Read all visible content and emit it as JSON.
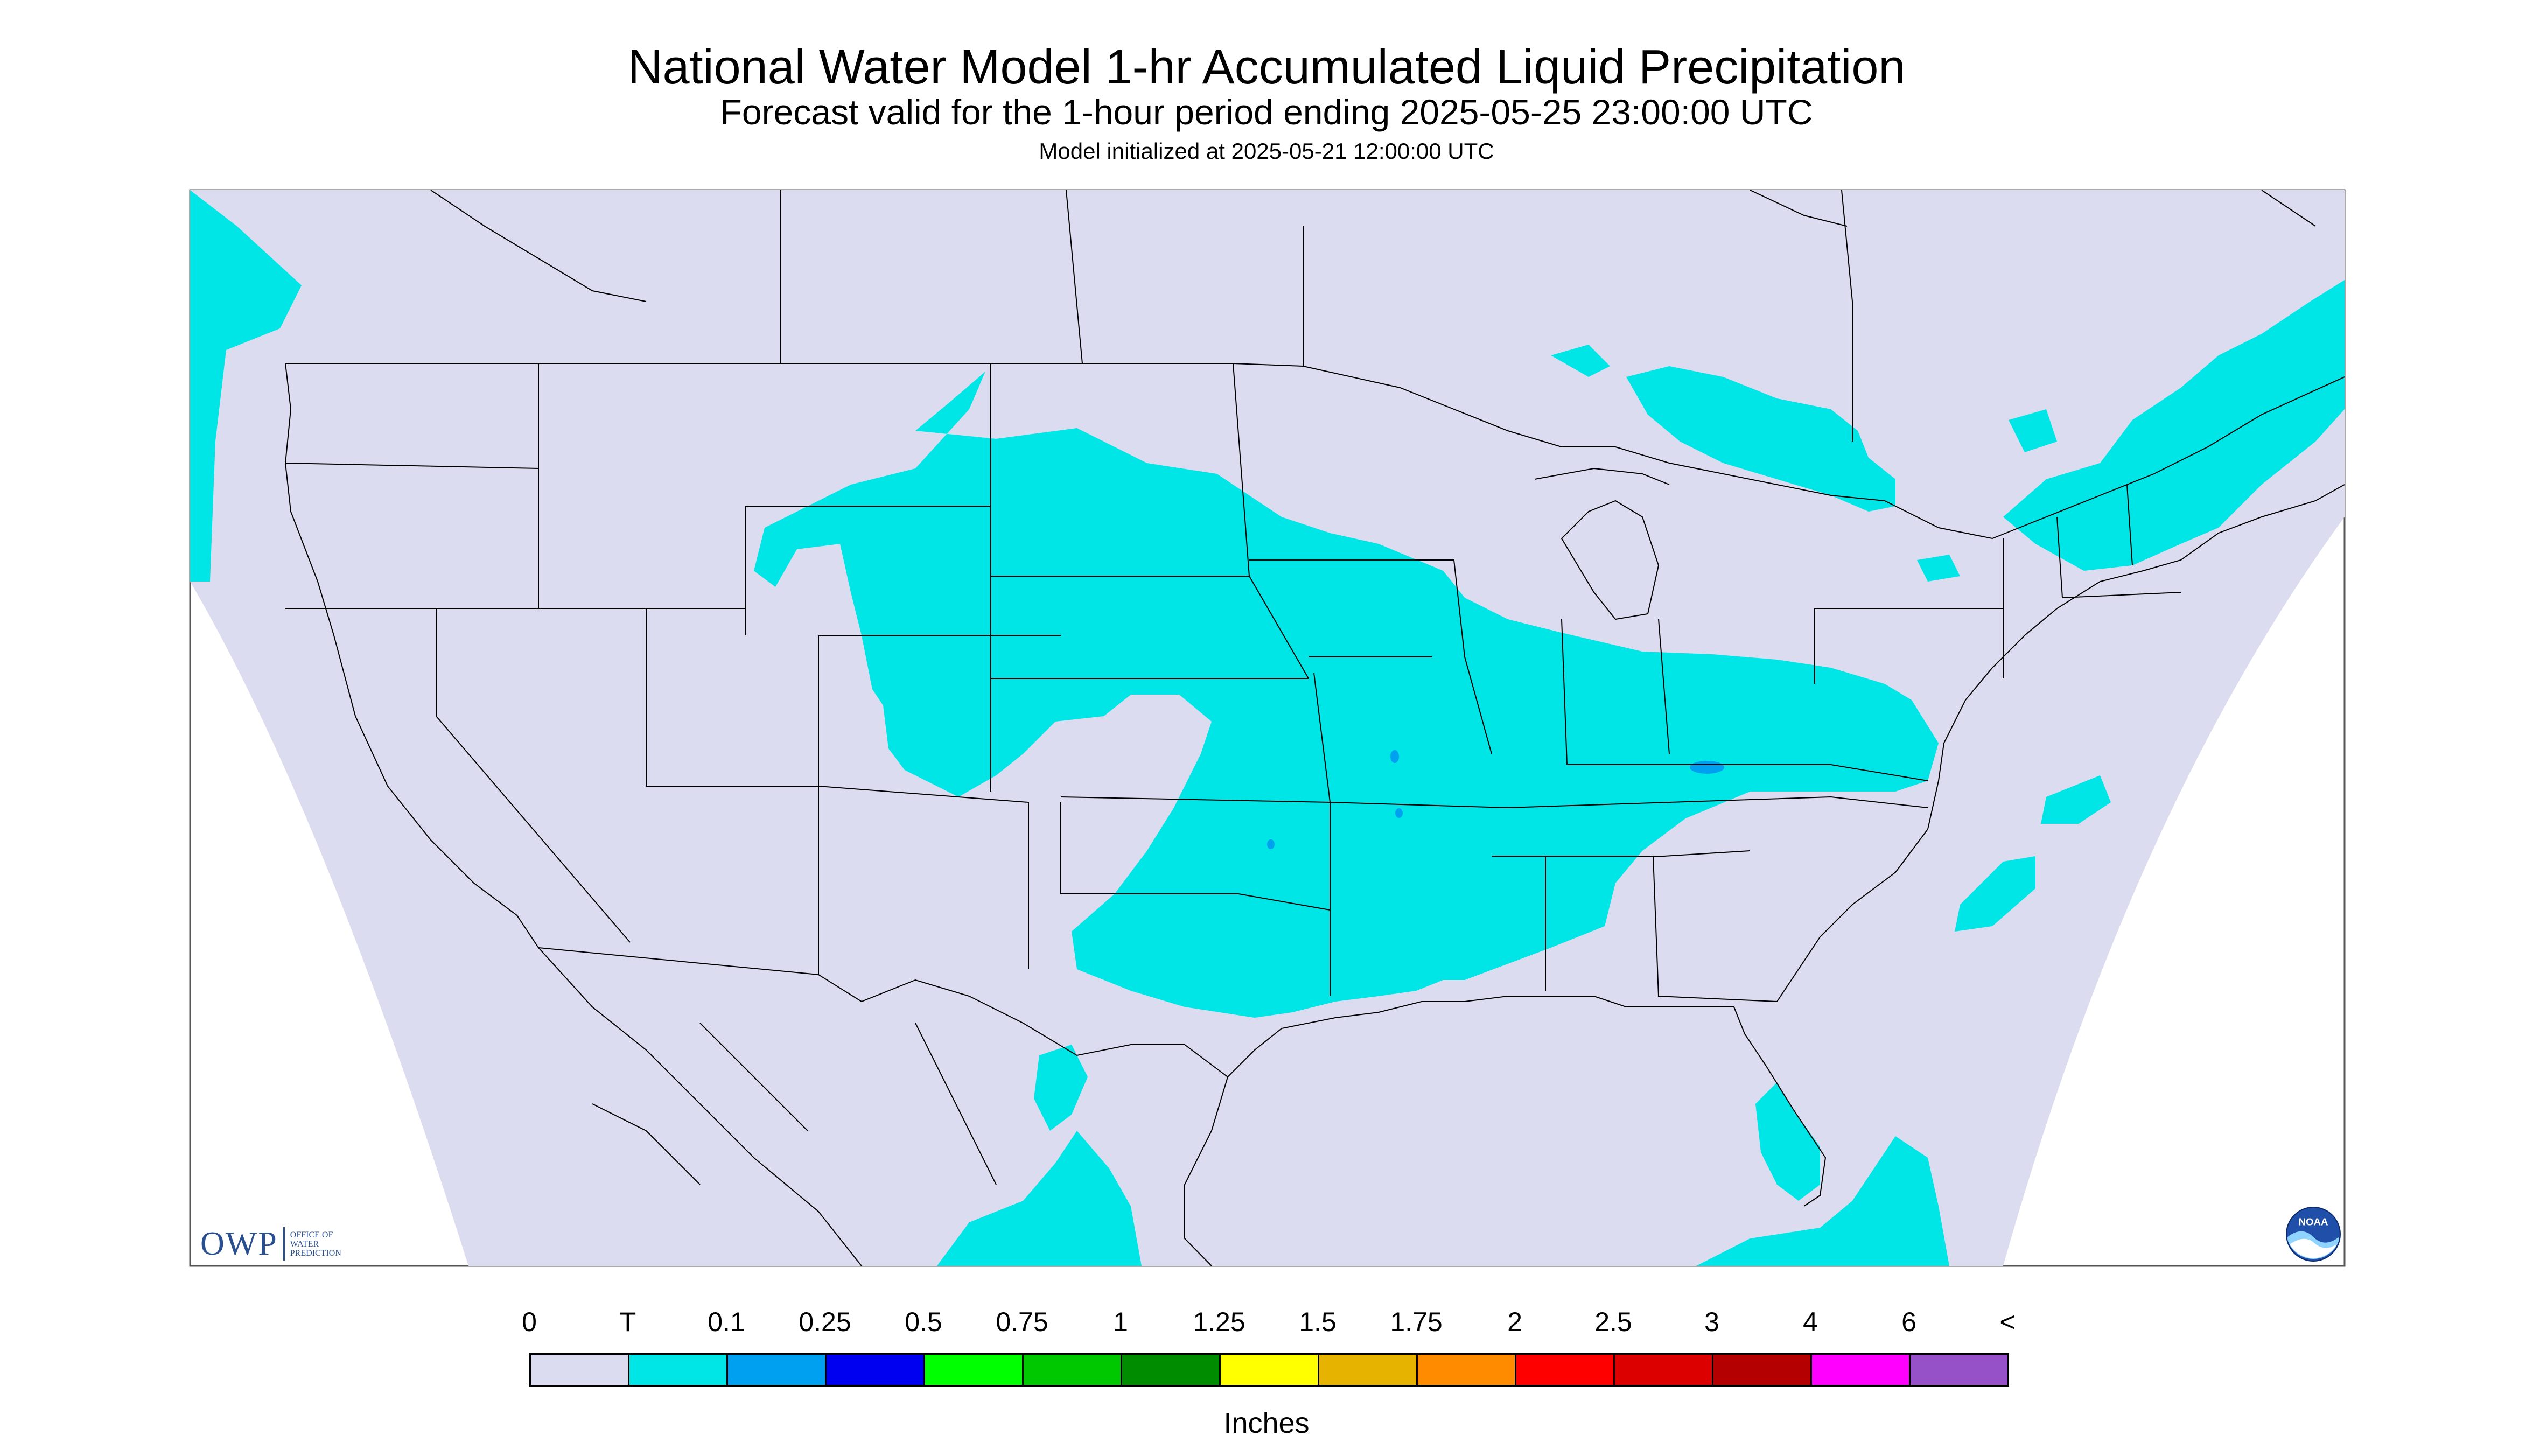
{
  "header": {
    "title": "National Water Model 1-hr Accumulated Liquid Precipitation",
    "subtitle": "Forecast valid for the 1-hour period ending 2025-05-25 23:00:00 UTC",
    "init": "Model initialized at 2025-05-21 12:00:00 UTC"
  },
  "legend": {
    "units": "Inches",
    "labels": [
      "0",
      "T",
      "0.1",
      "0.25",
      "0.5",
      "0.75",
      "1",
      "1.25",
      "1.5",
      "1.75",
      "2",
      "2.5",
      "3",
      "4",
      "6",
      "<"
    ],
    "colors": [
      "#dcdcf0",
      "#00e6e6",
      "#00a0f0",
      "#0000f0",
      "#00ff00",
      "#00c800",
      "#008c00",
      "#ffff00",
      "#e6b400",
      "#ff8c00",
      "#ff0000",
      "#dc0000",
      "#b40000",
      "#ff00ff",
      "#9650c8"
    ]
  },
  "map": {
    "background_color": "#dcdcf0",
    "trace_color": "#00e6e6",
    "light_color": "#00a0f0",
    "border_color": "#000000"
  },
  "logos": {
    "owp_mark": "OWP",
    "owp_text": [
      "OFFICE OF",
      "WATER",
      "PREDICTION"
    ],
    "noaa_icon": "noaa-icon",
    "noaa_text": "NOAA"
  }
}
